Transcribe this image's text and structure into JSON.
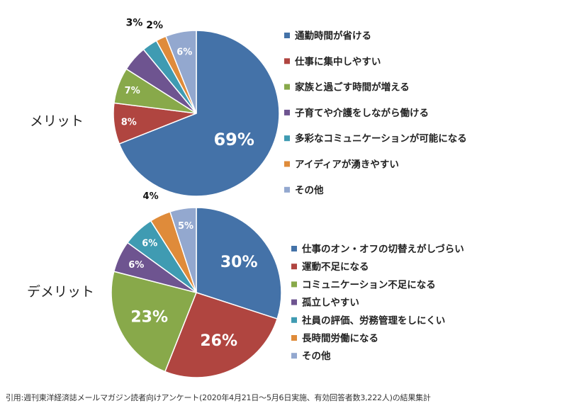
{
  "chart_data": [
    {
      "type": "pie",
      "label": "メリット",
      "categories": [
        "通勤時間が省ける",
        "仕事に集中しやすい",
        "家族と過ごす時間が増える",
        "子育てや介護をしながら働ける",
        "多彩なコミュニケーションが可能になる",
        "アイディアが湧きやすい",
        "その他"
      ],
      "values": [
        69,
        8,
        7,
        5,
        3,
        2,
        6
      ],
      "data_labels": [
        "69%",
        "8%",
        "7%",
        "",
        "3%",
        "2%",
        "6%"
      ],
      "colors": [
        "#4472a8",
        "#b04540",
        "#88a94a",
        "#6e5490",
        "#3f9bb2",
        "#df8b3a",
        "#93a8cf"
      ],
      "legend_position": "right"
    },
    {
      "type": "pie",
      "label": "デメリット",
      "categories": [
        "仕事のオン・オフの切替えがしづらい",
        "運動不足になる",
        "コミュニケーション不足になる",
        "孤立しやすい",
        "社員の評価、労務管理をしにくい",
        "長時間労働になる",
        "その他"
      ],
      "values": [
        30,
        26,
        23,
        6,
        6,
        4,
        5
      ],
      "data_labels": [
        "30%",
        "26%",
        "23%",
        "6%",
        "6%",
        "4%",
        "5%"
      ],
      "colors": [
        "#4472a8",
        "#b04540",
        "#88a94a",
        "#6e5490",
        "#3f9bb2",
        "#df8b3a",
        "#93a8cf"
      ],
      "legend_position": "right"
    }
  ],
  "footnote": "引用:週刊東洋経済誌メールマガジン読者向けアンケート(2020年4月21日〜5月6日実施、有効回答者数3,222人)の結果集計"
}
